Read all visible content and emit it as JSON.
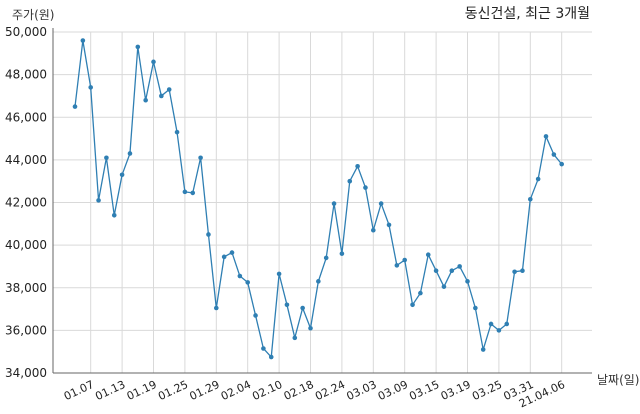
{
  "chart_data": {
    "type": "line",
    "title": "동신건설, 최근 3개월",
    "ylabel": "주가(원)",
    "xlabel": "날짜(일)",
    "ylim": [
      34000,
      50000
    ],
    "yticks": [
      "34,000",
      "36,000",
      "38,000",
      "40,000",
      "42,000",
      "44,000",
      "46,000",
      "48,000",
      "50,000"
    ],
    "grid": true,
    "color": "#2f7fb3",
    "x_ticks": [
      {
        "label": "01.07",
        "index": 2
      },
      {
        "label": "01.13",
        "index": 6
      },
      {
        "label": "01.19",
        "index": 10
      },
      {
        "label": "01.25",
        "index": 14
      },
      {
        "label": "01.29",
        "index": 18
      },
      {
        "label": "02.04",
        "index": 22
      },
      {
        "label": "02.10",
        "index": 26
      },
      {
        "label": "02.18",
        "index": 30
      },
      {
        "label": "02.24",
        "index": 34
      },
      {
        "label": "03.03",
        "index": 38
      },
      {
        "label": "03.09",
        "index": 42
      },
      {
        "label": "03.15",
        "index": 46
      },
      {
        "label": "03.19",
        "index": 50
      },
      {
        "label": "03.25",
        "index": 54
      },
      {
        "label": "03.31",
        "index": 58
      },
      {
        "label": "21.04.06",
        "index": 62
      }
    ],
    "series": [
      {
        "values": [
          46500,
          49600,
          47400,
          42100,
          44100,
          41400,
          43300,
          44300,
          49300,
          46800,
          48600,
          47000,
          47300,
          45300,
          42500,
          42450,
          44100,
          40500,
          37050,
          39450,
          39650,
          38550,
          38250,
          36700,
          35150,
          34750,
          38650,
          37200,
          35650,
          37050,
          36100,
          38300,
          39400,
          41950,
          39600,
          43000,
          43700,
          42700,
          40700,
          41950,
          40950,
          39050,
          39300,
          37200,
          37750,
          39550,
          38800,
          38050,
          38800,
          39000,
          38300,
          37050,
          35100,
          36300,
          36000,
          36300,
          38750,
          38800,
          42150,
          43100,
          45100,
          44250,
          43800
        ]
      }
    ]
  }
}
